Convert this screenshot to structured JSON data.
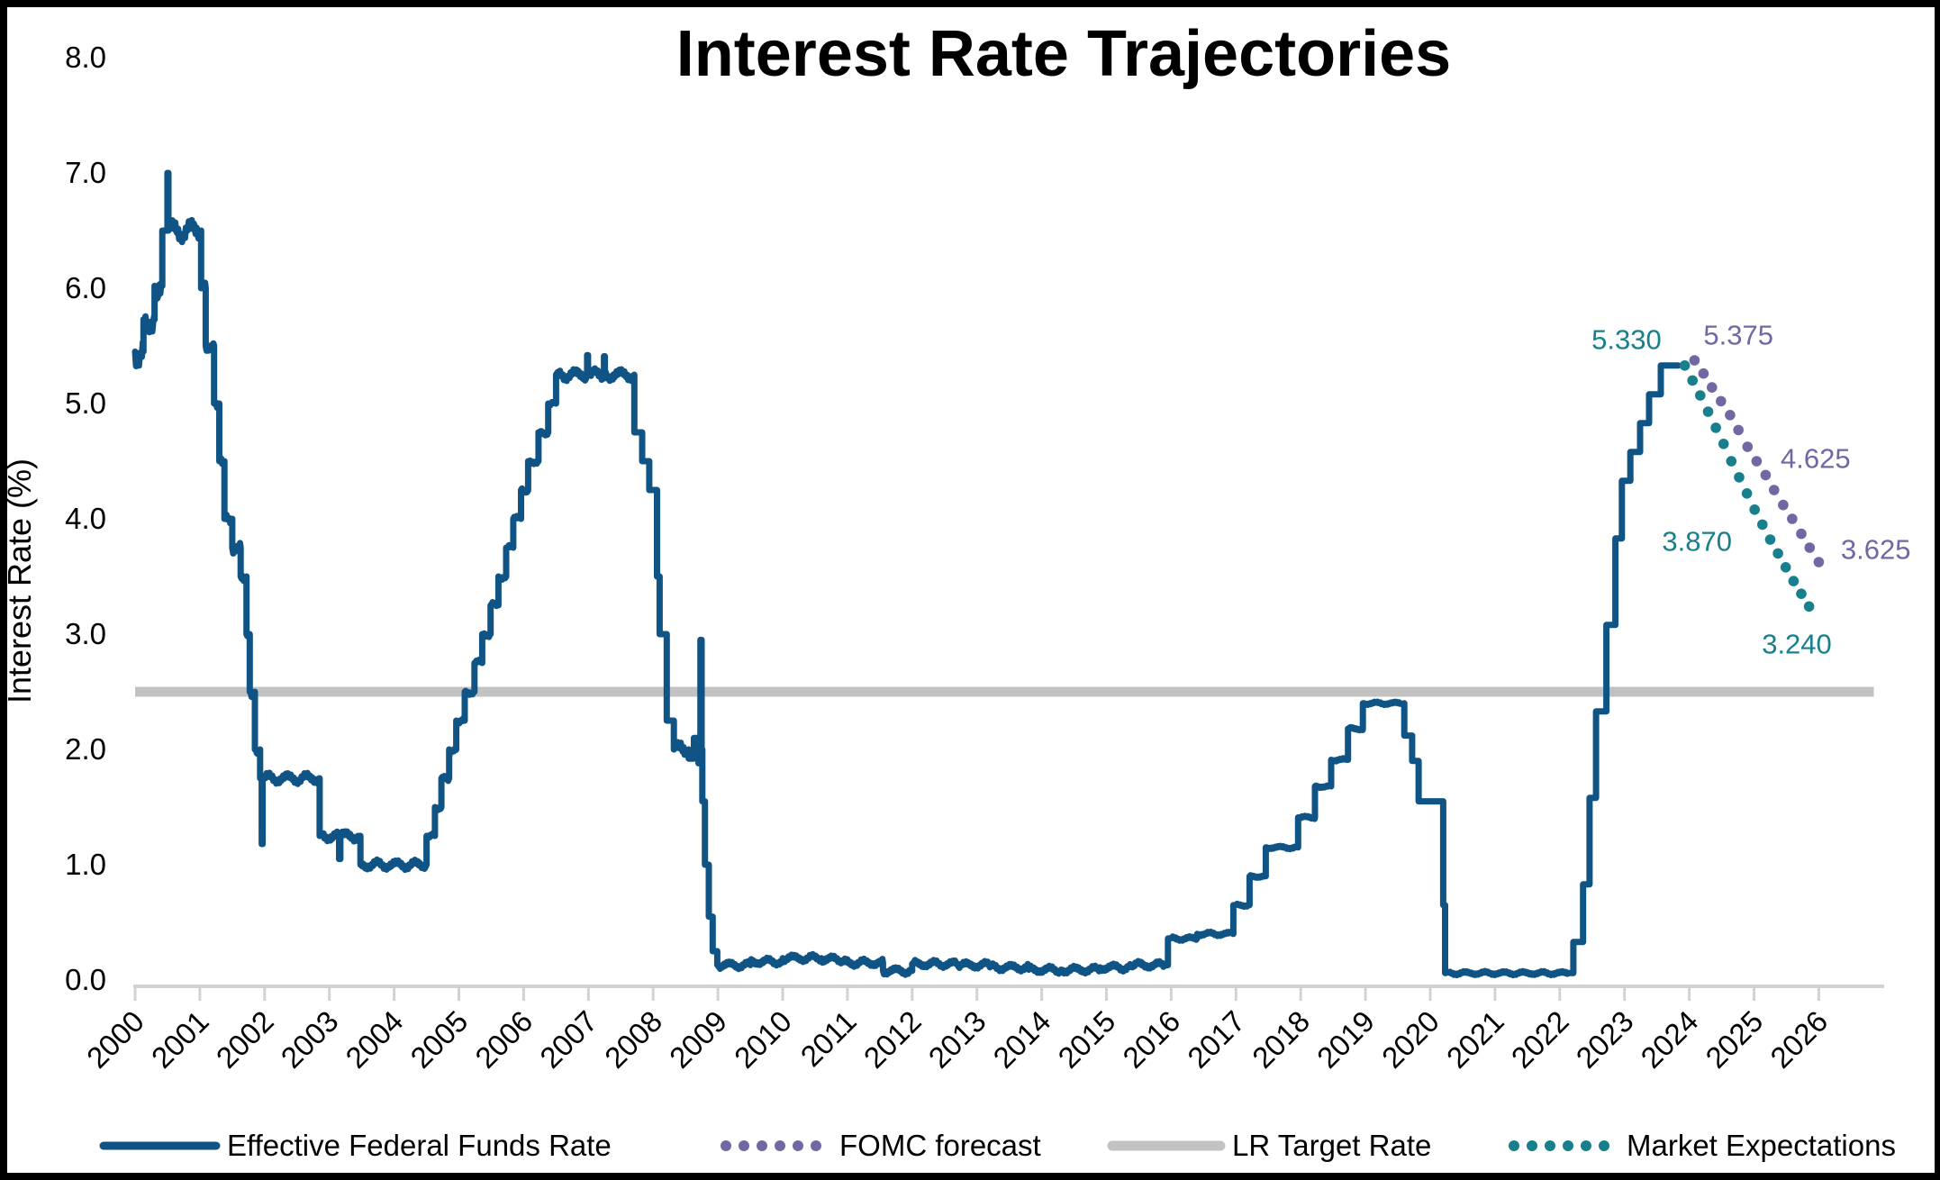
{
  "title": "Interest Rate Trajectories",
  "y_axis": {
    "title": "Interest Rate (%)",
    "tick_labels": [
      "0.0",
      "1.0",
      "2.0",
      "3.0",
      "4.0",
      "5.0",
      "6.0",
      "7.0",
      "8.0"
    ],
    "min": 0,
    "max": 8
  },
  "x_axis": {
    "tick_labels": [
      "2000",
      "2001",
      "2002",
      "2003",
      "2004",
      "2005",
      "2006",
      "2007",
      "2008",
      "2009",
      "2010",
      "2011",
      "2012",
      "2013",
      "2014",
      "2015",
      "2016",
      "2017",
      "2018",
      "2019",
      "2020",
      "2021",
      "2022",
      "2023",
      "2024",
      "2025",
      "2026"
    ]
  },
  "colors": {
    "effr_blue": "#105486",
    "fomc_purple": "#7167A3",
    "lr_gray": "#C2C2C2",
    "market_teal": "#17808C",
    "axis_gray": "#D2D2D2",
    "text_black": "#000000",
    "background": "#FFFFFF",
    "border": "#000000"
  },
  "legend": {
    "items": [
      {
        "label": "Effective Federal Funds Rate",
        "swatch": "line",
        "color": "#105486",
        "icon": "solid-line-swatch"
      },
      {
        "label": "FOMC forecast",
        "swatch": "dots",
        "color": "#7167A3",
        "icon": "dotted-line-swatch"
      },
      {
        "label": "LR Target Rate",
        "swatch": "line",
        "color": "#C2C2C2",
        "icon": "solid-line-swatch"
      },
      {
        "label": "Market Expectations",
        "swatch": "dots",
        "color": "#17808C",
        "icon": "dotted-line-swatch"
      }
    ]
  },
  "chart_data": {
    "type": "line",
    "title": "Interest Rate Trajectories",
    "xlabel": "",
    "ylabel": "Interest Rate (%)",
    "xlim": [
      2000,
      2027
    ],
    "ylim": [
      0,
      8
    ],
    "grid": false,
    "legend_position": "bottom",
    "series": [
      {
        "name": "Effective Federal Funds Rate",
        "render": "step",
        "color": "#105486",
        "points": [
          [
            2000.0,
            5.45
          ],
          [
            2000.13,
            5.73
          ],
          [
            2000.3,
            6.02
          ],
          [
            2000.42,
            6.5
          ],
          [
            2000.49,
            6.5
          ],
          [
            2000.5,
            7.0
          ],
          [
            2000.515,
            6.5
          ],
          [
            2001.02,
            6.0
          ],
          [
            2001.09,
            5.5
          ],
          [
            2001.22,
            5.0
          ],
          [
            2001.3,
            4.5
          ],
          [
            2001.38,
            4.0
          ],
          [
            2001.5,
            3.75
          ],
          [
            2001.63,
            3.5
          ],
          [
            2001.72,
            3.0
          ],
          [
            2001.77,
            2.5
          ],
          [
            2001.85,
            2.0
          ],
          [
            2001.93,
            1.75
          ],
          [
            2001.955,
            1.18
          ],
          [
            2001.97,
            1.75
          ],
          [
            2002.85,
            1.25
          ],
          [
            2003.15,
            1.05
          ],
          [
            2003.17,
            1.25
          ],
          [
            2003.48,
            1.0
          ],
          [
            2004.5,
            1.25
          ],
          [
            2004.63,
            1.5
          ],
          [
            2004.73,
            1.75
          ],
          [
            2004.85,
            2.0
          ],
          [
            2004.96,
            2.25
          ],
          [
            2005.09,
            2.5
          ],
          [
            2005.24,
            2.75
          ],
          [
            2005.36,
            3.0
          ],
          [
            2005.49,
            3.25
          ],
          [
            2005.61,
            3.5
          ],
          [
            2005.73,
            3.75
          ],
          [
            2005.84,
            4.0
          ],
          [
            2005.96,
            4.25
          ],
          [
            2006.07,
            4.5
          ],
          [
            2006.23,
            4.75
          ],
          [
            2006.38,
            5.0
          ],
          [
            2006.5,
            5.25
          ],
          [
            2006.98,
            5.42
          ],
          [
            2006.995,
            5.25
          ],
          [
            2007.24,
            5.41
          ],
          [
            2007.255,
            5.25
          ],
          [
            2007.71,
            4.75
          ],
          [
            2007.83,
            4.5
          ],
          [
            2007.94,
            4.25
          ],
          [
            2008.06,
            3.5
          ],
          [
            2008.1,
            3.0
          ],
          [
            2008.21,
            2.25
          ],
          [
            2008.32,
            2.0
          ],
          [
            2008.55,
            1.92
          ],
          [
            2008.63,
            2.1
          ],
          [
            2008.7,
            1.88
          ],
          [
            2008.73,
            2.95
          ],
          [
            2008.748,
            2.0
          ],
          [
            2008.76,
            1.55
          ],
          [
            2008.8,
            1.0
          ],
          [
            2008.86,
            0.55
          ],
          [
            2008.92,
            0.25
          ],
          [
            2008.99,
            0.13
          ],
          [
            2009.5,
            0.16
          ],
          [
            2010.0,
            0.19
          ],
          [
            2010.6,
            0.18
          ],
          [
            2011.0,
            0.15
          ],
          [
            2011.55,
            0.08
          ],
          [
            2012.0,
            0.14
          ],
          [
            2012.7,
            0.13
          ],
          [
            2013.2,
            0.11
          ],
          [
            2013.8,
            0.09
          ],
          [
            2014.3,
            0.09
          ],
          [
            2014.9,
            0.11
          ],
          [
            2015.4,
            0.13
          ],
          [
            2015.95,
            0.36
          ],
          [
            2016.4,
            0.4
          ],
          [
            2016.96,
            0.65
          ],
          [
            2017.21,
            0.9
          ],
          [
            2017.46,
            1.15
          ],
          [
            2017.96,
            1.41
          ],
          [
            2018.22,
            1.68
          ],
          [
            2018.47,
            1.91
          ],
          [
            2018.73,
            2.18
          ],
          [
            2018.96,
            2.4
          ],
          [
            2019.6,
            2.12
          ],
          [
            2019.72,
            1.9
          ],
          [
            2019.82,
            1.55
          ],
          [
            2020.2,
            0.65
          ],
          [
            2020.23,
            0.06
          ],
          [
            2022.21,
            0.33
          ],
          [
            2022.36,
            0.83
          ],
          [
            2022.46,
            1.58
          ],
          [
            2022.56,
            2.33
          ],
          [
            2022.72,
            3.08
          ],
          [
            2022.86,
            3.83
          ],
          [
            2022.96,
            4.33
          ],
          [
            2023.09,
            4.58
          ],
          [
            2023.24,
            4.83
          ],
          [
            2023.38,
            5.08
          ],
          [
            2023.56,
            5.33
          ],
          [
            2023.83,
            5.33
          ]
        ],
        "noise_ranges": [
          [
            2000.0,
            2000.41,
            0.14
          ],
          [
            2000.52,
            2000.99,
            0.1
          ],
          [
            2001.03,
            2001.92,
            0.05
          ],
          [
            2002.0,
            2002.83,
            0.05
          ],
          [
            2002.87,
            2003.45,
            0.05
          ],
          [
            2003.5,
            2004.48,
            0.045
          ],
          [
            2004.52,
            2006.45,
            0.028
          ],
          [
            2006.52,
            2007.7,
            0.055
          ],
          [
            2008.33,
            2008.53,
            0.08
          ],
          [
            2009.0,
            2015.9,
            0.035
          ],
          [
            2016.0,
            2016.9,
            0.02
          ],
          [
            2017.0,
            2019.55,
            0.015
          ],
          [
            2020.3,
            2022.15,
            0.018
          ]
        ]
      },
      {
        "name": "FOMC forecast",
        "render": "dots",
        "color": "#7167A3",
        "points": [
          [
            2024.08,
            5.375
          ],
          [
            2024.22,
            5.26
          ],
          [
            2024.35,
            5.14
          ],
          [
            2024.49,
            5.02
          ],
          [
            2024.63,
            4.9
          ],
          [
            2024.76,
            4.77
          ],
          [
            2024.9,
            4.625
          ],
          [
            2025.04,
            4.5
          ],
          [
            2025.18,
            4.38
          ],
          [
            2025.31,
            4.25
          ],
          [
            2025.45,
            4.12
          ],
          [
            2025.59,
            4.0
          ],
          [
            2025.73,
            3.87
          ],
          [
            2025.86,
            3.75
          ],
          [
            2026.0,
            3.625
          ]
        ]
      },
      {
        "name": "LR Target Rate",
        "render": "hline",
        "color": "#C2C2C2",
        "value": 2.5,
        "x_range": [
          2000,
          2026.85
        ]
      },
      {
        "name": "Market Expectations",
        "render": "dots",
        "color": "#17808C",
        "points": [
          [
            2023.93,
            5.33
          ],
          [
            2024.05,
            5.2
          ],
          [
            2024.17,
            5.07
          ],
          [
            2024.29,
            4.93
          ],
          [
            2024.41,
            4.79
          ],
          [
            2024.53,
            4.65
          ],
          [
            2024.65,
            4.5
          ],
          [
            2024.77,
            4.36
          ],
          [
            2024.89,
            4.22
          ],
          [
            2025.01,
            4.08
          ],
          [
            2025.13,
            3.95
          ],
          [
            2025.25,
            3.82
          ],
          [
            2025.37,
            3.7
          ],
          [
            2025.49,
            3.58
          ],
          [
            2025.61,
            3.46
          ],
          [
            2025.73,
            3.35
          ],
          [
            2025.85,
            3.24
          ]
        ]
      }
    ],
    "annotations": [
      {
        "text": "5.330",
        "color": "#17808C",
        "t": 2023.03,
        "v": 5.55
      },
      {
        "text": "5.375",
        "color": "#7167A3",
        "t": 2024.76,
        "v": 5.59
      },
      {
        "text": "4.625",
        "color": "#7167A3",
        "t": 2025.95,
        "v": 4.52
      },
      {
        "text": "3.625",
        "color": "#7167A3",
        "t": 2026.88,
        "v": 3.73
      },
      {
        "text": "3.870",
        "color": "#17808C",
        "t": 2024.12,
        "v": 3.8
      },
      {
        "text": "3.240",
        "color": "#17808C",
        "t": 2025.66,
        "v": 2.91
      }
    ]
  }
}
